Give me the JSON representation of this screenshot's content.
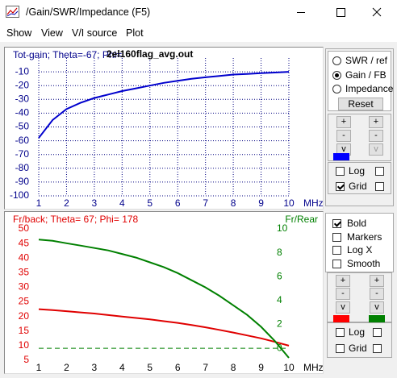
{
  "window": {
    "title": "/Gain/SWR/Impedance (F5)"
  },
  "menu": [
    "Show",
    "View",
    "V/I source",
    "Plot"
  ],
  "chart_data": [
    {
      "type": "line",
      "title": "Tot-gain; Theta=-67; Phi=",
      "subtitle": "2el160flag_avg.out",
      "x": [
        1,
        1.5,
        2,
        2.5,
        3,
        3.5,
        4,
        4.5,
        5,
        5.5,
        6,
        6.5,
        7,
        7.5,
        8,
        8.5,
        9,
        9.5,
        10
      ],
      "xlim": [
        1,
        10
      ],
      "xticks": [
        1,
        2,
        3,
        4,
        5,
        6,
        7,
        8,
        9,
        10
      ],
      "xlabel": "MHz",
      "ylim": [
        -100,
        0
      ],
      "yticks": [
        -10,
        -20,
        -30,
        -40,
        -50,
        -60,
        -70,
        -80,
        -90,
        -100
      ],
      "grid": true,
      "series": [
        {
          "color": "#0000cd",
          "values": [
            -58,
            -45,
            -37,
            -32.5,
            -29,
            -26.5,
            -24,
            -22,
            -20,
            -18,
            -16.5,
            -15,
            -14,
            -13,
            -12,
            -11.5,
            -11,
            -10.5,
            -10
          ]
        }
      ]
    },
    {
      "type": "line",
      "title": "Fr/back; Theta= 67; Phi= 178",
      "y2label": "Fr/Rear",
      "x": [
        1,
        1.5,
        2,
        2.5,
        3,
        3.5,
        4,
        4.5,
        5,
        5.5,
        6,
        6.5,
        7,
        7.5,
        8,
        8.5,
        9,
        9.5,
        10
      ],
      "xlim": [
        1,
        10
      ],
      "xticks": [
        1,
        2,
        3,
        4,
        5,
        6,
        7,
        8,
        9,
        10
      ],
      "xlabel": "MHz",
      "ylim": [
        5,
        50
      ],
      "yticks": [
        50,
        45,
        40,
        35,
        30,
        25,
        20,
        15,
        10,
        5
      ],
      "y2lim": [
        -1,
        10
      ],
      "y2ticks": [
        10,
        8,
        6,
        4,
        2,
        0
      ],
      "grid": false,
      "reference": {
        "axis": "y2",
        "value": 0,
        "color": "#008000"
      },
      "series": [
        {
          "color": "#e00000",
          "values": [
            22.5,
            22.2,
            21.8,
            21.4,
            21,
            20.5,
            20,
            19.5,
            19,
            18.4,
            17.8,
            17.1,
            16.3,
            15.4,
            14.5,
            13.5,
            12.5,
            11.3,
            10
          ]
        },
        {
          "color": "#008000",
          "axis": "y2",
          "values": [
            9.1,
            9,
            8.8,
            8.6,
            8.4,
            8.2,
            7.9,
            7.6,
            7.2,
            6.8,
            6.3,
            5.7,
            5.1,
            4.4,
            3.6,
            2.8,
            1.8,
            0.6,
            -0.8
          ]
        }
      ]
    }
  ],
  "top_panel": {
    "radios": [
      {
        "label": "SWR / ref",
        "checked": false
      },
      {
        "label": "Gain / FB",
        "checked": true
      },
      {
        "label": "Impedance",
        "checked": false
      }
    ],
    "reset": "Reset",
    "buttons": [
      [
        "+",
        "+"
      ],
      [
        "-",
        "-"
      ],
      [
        "v",
        "v"
      ]
    ],
    "swatch": "#0000ff",
    "checkboxes": [
      {
        "label": "Log",
        "checked": false
      },
      {
        "label": "Grid",
        "checked": true
      }
    ]
  },
  "bottom_panel": {
    "options": [
      {
        "label": "Bold",
        "checked": true
      },
      {
        "label": "Markers",
        "checked": false
      },
      {
        "label": "Log X",
        "checked": false
      },
      {
        "label": "Smooth",
        "checked": false
      }
    ],
    "buttons": [
      [
        "+",
        "+"
      ],
      [
        "-",
        "-"
      ],
      [
        "v",
        "v"
      ]
    ],
    "swatches": [
      "#ff0000",
      "#008000"
    ],
    "checkboxes": [
      {
        "label": "Log",
        "checked": false
      },
      {
        "label": "Grid",
        "checked": false
      }
    ]
  }
}
